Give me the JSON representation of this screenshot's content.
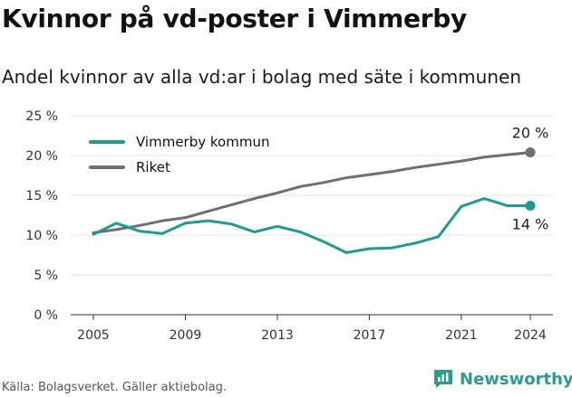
{
  "title": "Kvinnor på vd-poster i Vimmerby",
  "subtitle": "Andel kvinnor av alla vd:ar i bolag med säte i kommunen",
  "source": "Källa: Bolagsverket. Gäller aktiebolag.",
  "brand": {
    "name": "Newsworthy",
    "icon": "newsworthy-logo-icon",
    "color": "#2a9d8f"
  },
  "chart_data": {
    "type": "line",
    "x": [
      2005,
      2006,
      2007,
      2008,
      2009,
      2010,
      2011,
      2012,
      2013,
      2014,
      2015,
      2016,
      2017,
      2018,
      2019,
      2020,
      2021,
      2022,
      2023,
      2024
    ],
    "x_ticks": [
      2005,
      2009,
      2013,
      2017,
      2021,
      2024
    ],
    "x_tick_labels": [
      "2005",
      "2009",
      "2013",
      "2017",
      "2021",
      "2024"
    ],
    "ylim": [
      0,
      25
    ],
    "y_ticks": [
      0,
      5,
      10,
      15,
      20,
      25
    ],
    "y_tick_labels": [
      "0 %",
      "5 %",
      "10 %",
      "15 %",
      "20 %",
      "25 %"
    ],
    "grid": "horizontal",
    "legend_position": "top-left",
    "series": [
      {
        "name": "Vimmerby kommun",
        "color": "#1a9e8f",
        "values": [
          10.1,
          11.5,
          10.5,
          10.2,
          11.5,
          11.8,
          11.4,
          10.4,
          11.1,
          10.4,
          9.2,
          7.8,
          8.3,
          8.4,
          9.0,
          9.8,
          13.6,
          14.6,
          13.7,
          13.7
        ],
        "end_label": "14 %"
      },
      {
        "name": "Riket",
        "color": "#6e6e73",
        "values": [
          10.3,
          10.7,
          11.2,
          11.8,
          12.2,
          13.0,
          13.8,
          14.6,
          15.3,
          16.1,
          16.6,
          17.2,
          17.6,
          18.0,
          18.5,
          18.9,
          19.3,
          19.8,
          20.1,
          20.4
        ],
        "end_label": "20 %"
      }
    ]
  }
}
